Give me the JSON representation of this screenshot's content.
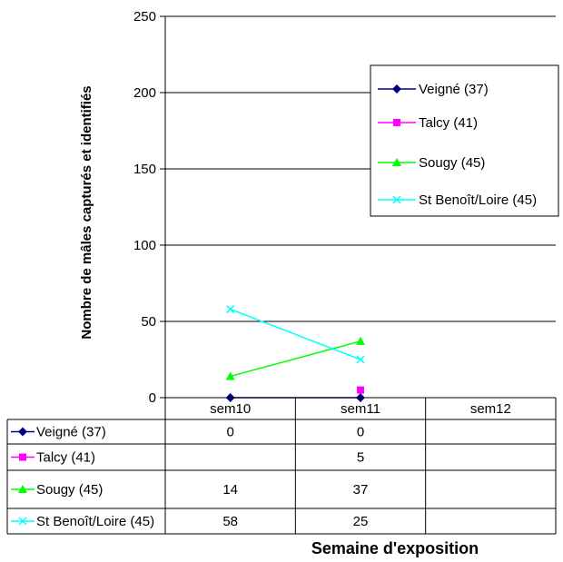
{
  "chart_data": {
    "type": "line",
    "categories": [
      "sem10",
      "sem11",
      "sem12"
    ],
    "series": [
      {
        "name": "Veigné (37)",
        "values": [
          0,
          0,
          null
        ],
        "color": "#000080",
        "marker": "diamond"
      },
      {
        "name": "Talcy (41)",
        "values": [
          null,
          5,
          null
        ],
        "color": "#FF00FF",
        "marker": "square"
      },
      {
        "name": "Sougy (45)",
        "values": [
          14,
          37,
          null
        ],
        "color": "#00FF00",
        "marker": "triangle"
      },
      {
        "name": "St Benoît/Loire (45)",
        "values": [
          58,
          25,
          null
        ],
        "color": "#00FFFF",
        "marker": "x"
      }
    ],
    "ylabel": "Nombre de mâles capturés et identifiés",
    "xlabel": "Semaine d'exposition",
    "ylim": [
      0,
      250
    ],
    "yticks": [
      0,
      50,
      100,
      150,
      200,
      250
    ],
    "grid": true,
    "legend": "right",
    "data_table": true
  }
}
